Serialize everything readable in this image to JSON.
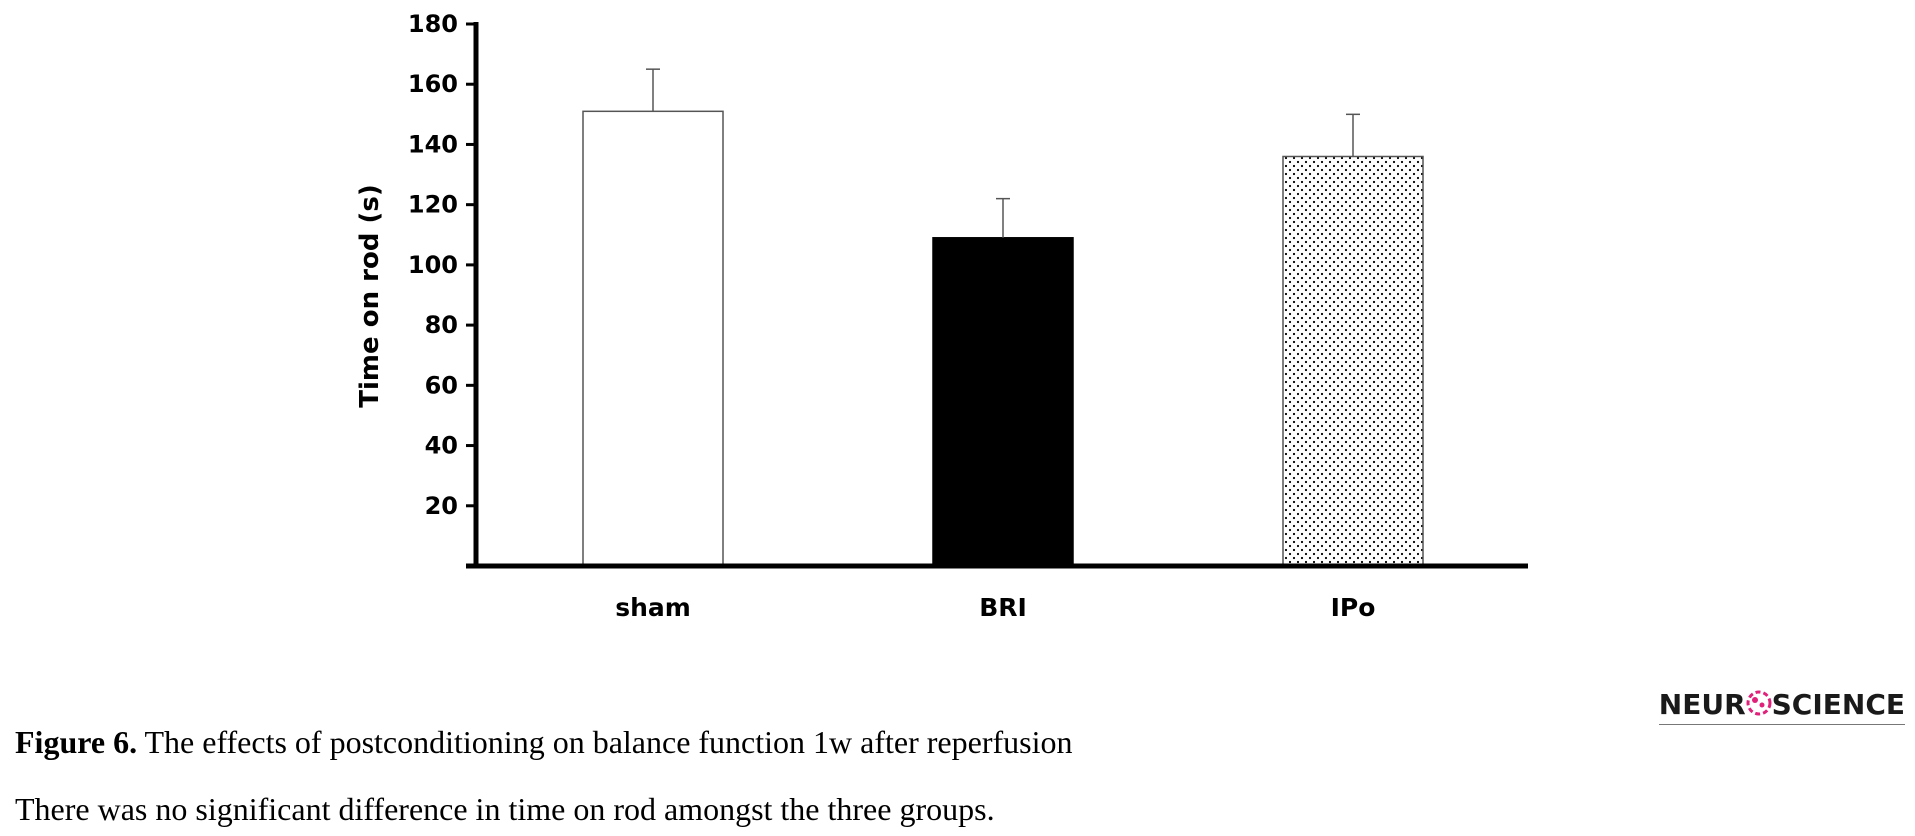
{
  "chart_data": {
    "type": "bar",
    "categories": [
      "sham",
      "BRI",
      "IPo"
    ],
    "values": [
      151,
      109,
      136
    ],
    "error_plus": [
      14,
      13,
      14
    ],
    "ylabel": "Time on rod (s)",
    "xlabel": "",
    "ylim": [
      0,
      180
    ],
    "yticks": [
      20,
      40,
      60,
      80,
      100,
      120,
      140,
      160,
      180
    ],
    "bar_fills": [
      "white",
      "black",
      "dotted"
    ],
    "grid": false
  },
  "logo": {
    "left": "NEUR",
    "right": "SCIENCE",
    "accent_color": "#e0207a"
  },
  "caption": {
    "label": "Figure 6.",
    "text": "The effects of postconditioning on balance function 1w after reperfusion"
  },
  "note": "There was no significant difference in time on rod amongst the three groups."
}
